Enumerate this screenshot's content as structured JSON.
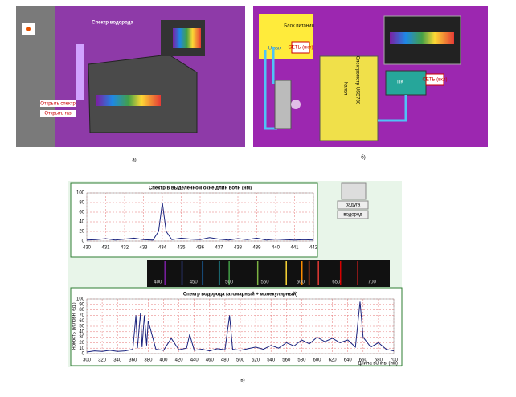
{
  "panel_a": {
    "title": "Спектр водорода",
    "buttons": [
      "Открыть спектр",
      "Открыть газ"
    ],
    "caption": "а)"
  },
  "panel_b": {
    "power": "Блок питания",
    "u_out": "U вых",
    "net": "СЕТЬ (вкл)",
    "spectrometer": "Спектрометр USB730",
    "vendor": "Капэл",
    "pc": "ПК",
    "pc_net": "СЕТЬ (вкл)",
    "caption": "б)"
  },
  "panel_c": {
    "caption": "в)",
    "buttons": [
      "радуга",
      "водород"
    ],
    "chart_top": {
      "type": "line",
      "title": "Спектр в выделенном окне длин волн (нм)",
      "color": "#1a237e",
      "x": [
        430,
        430.5,
        431,
        431.5,
        432,
        432.5,
        433,
        433.5,
        433.8,
        434,
        434.2,
        434.5,
        435,
        435.5,
        436,
        436.5,
        437,
        437.5,
        438,
        438.5,
        439,
        439.5,
        440,
        440.5,
        441,
        441.5,
        442
      ],
      "values": [
        2,
        3,
        5,
        2,
        4,
        6,
        3,
        2,
        20,
        80,
        20,
        3,
        6,
        4,
        3,
        7,
        4,
        2,
        5,
        3,
        6,
        2,
        4,
        3,
        2,
        3,
        2
      ],
      "xlim": [
        430,
        442
      ],
      "ylim": [
        0,
        100
      ],
      "xticks": [
        430,
        431,
        432,
        433,
        434,
        435,
        436,
        437,
        438,
        439,
        440,
        441,
        442
      ],
      "yticks": [
        0,
        20,
        40,
        60,
        80,
        100
      ],
      "grid": true
    },
    "strip": {
      "xlim": [
        385,
        725
      ],
      "xticks": [
        400,
        450,
        500,
        550,
        600,
        650,
        700
      ],
      "lines": [
        {
          "x": 410,
          "color": "#7b1fa2"
        },
        {
          "x": 434,
          "color": "#3949ab"
        },
        {
          "x": 463,
          "color": "#1e88e5"
        },
        {
          "x": 486,
          "color": "#26c6da"
        },
        {
          "x": 500,
          "color": "#43a047"
        },
        {
          "x": 540,
          "color": "#7cb342"
        },
        {
          "x": 580,
          "color": "#fdd835"
        },
        {
          "x": 602,
          "color": "#fb8c00"
        },
        {
          "x": 612,
          "color": "#f4511e"
        },
        {
          "x": 625,
          "color": "#e53935"
        },
        {
          "x": 656,
          "color": "#d50000"
        },
        {
          "x": 680,
          "color": "#b71c1c"
        }
      ]
    },
    "chart_bottom": {
      "type": "line",
      "title": "Спектр водорода (атомарный + молекулярный)",
      "y_label": "Яркость (условн. ед.)",
      "x_label": "Длина волны (нм)",
      "color": "#1a237e",
      "x": [
        300,
        310,
        320,
        330,
        340,
        350,
        360,
        364,
        366,
        370,
        372,
        375,
        378,
        380,
        390,
        400,
        410,
        420,
        430,
        434,
        440,
        450,
        460,
        470,
        480,
        486,
        490,
        500,
        510,
        520,
        530,
        540,
        550,
        560,
        570,
        580,
        590,
        600,
        610,
        620,
        630,
        640,
        650,
        656,
        660,
        670,
        680,
        690,
        700
      ],
      "values": [
        3,
        5,
        4,
        6,
        4,
        5,
        8,
        70,
        10,
        75,
        12,
        70,
        15,
        60,
        8,
        6,
        28,
        7,
        10,
        35,
        6,
        8,
        5,
        9,
        7,
        70,
        8,
        6,
        9,
        12,
        8,
        15,
        10,
        20,
        14,
        25,
        18,
        30,
        22,
        28,
        20,
        25,
        12,
        95,
        30,
        12,
        20,
        8,
        5
      ],
      "xlim": [
        300,
        700
      ],
      "ylim": [
        0,
        100
      ],
      "xticks": [
        300,
        320,
        340,
        360,
        380,
        400,
        420,
        440,
        460,
        480,
        500,
        520,
        540,
        560,
        580,
        600,
        620,
        640,
        660,
        680,
        700
      ],
      "yticks": [
        0,
        10,
        20,
        30,
        40,
        50,
        60,
        70,
        80,
        90,
        100
      ],
      "grid": true
    }
  }
}
